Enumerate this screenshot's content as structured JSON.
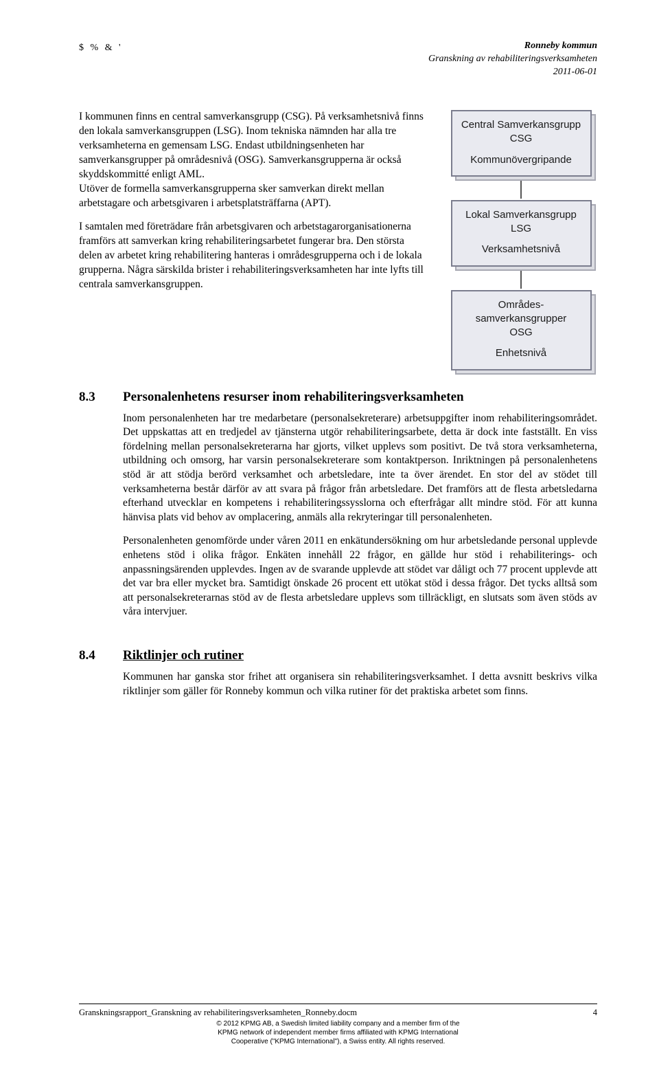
{
  "cornerMark": "$ % & '",
  "header": {
    "org": "Ronneby kommun",
    "subtitle": "Granskning av rehabiliteringsverksamheten",
    "date": "2011-06-01"
  },
  "intro": {
    "p1": "I kommunen finns en central samverkansgrupp (CSG). På verksamhetsnivå finns den lokala samverkansgruppen (LSG). Inom tekniska nämnden har alla tre verksamheterna en gemensam LSG. Endast utbildningsenheten har samverkansgrupper på områdesnivå (OSG). Samverkansgrupperna är också skyddskommitté enligt AML.",
    "p2": "Utöver de formella samverkansgrupperna sker samverkan direkt mellan arbetstagare och arbetsgivaren i arbetsplatsträffarna (APT).",
    "p3": "I samtalen med företrädare från arbetsgivaren och arbetstagarorganisationerna framförs att samverkan kring rehabiliteringsarbetet fungerar bra. Den största delen av arbetet kring rehabilitering hanteras i områdesgrupperna och i de lokala grupperna. Några särskilda brister i rehabiliteringsverksamheten har inte lyfts till centrala samverkansgruppen."
  },
  "diagram": {
    "boxes": [
      {
        "title": "Central Samverkansgrupp",
        "abbr": "CSG",
        "level": "Kommunövergripande"
      },
      {
        "title": "Lokal Samverkansgrupp",
        "abbr": "LSG",
        "level": "Verksamhetsnivå"
      },
      {
        "title_a": "Områdes-",
        "title_b": "samverkansgrupper",
        "abbr": "OSG",
        "level": "Enhetsnivå"
      }
    ],
    "colors": {
      "front_bg": "#e9eaf0",
      "front_border": "#7b7d8e",
      "shadow_bg": "#dcdde3",
      "shadow_border": "#a8a9b3"
    }
  },
  "sec83": {
    "num": "8.3",
    "title": "Personalenhetens resurser inom rehabiliteringsverksamheten",
    "p1": "Inom personalenheten har tre medarbetare (personalsekreterare) arbetsuppgifter inom rehabiliteringsområdet. Det uppskattas att en tredjedel av tjänsterna utgör rehabiliteringsarbete, detta är dock inte fastställt. En viss fördelning mellan personalsekreterarna har gjorts, vilket upplevs som positivt. De två stora verksamheterna, utbildning och omsorg, har varsin personalsekreterare som kontaktperson. Inriktningen på personalenhetens stöd är att stödja berörd verksamhet och arbetsledare, inte ta över ärendet. En stor del av stödet till verksamheterna består därför av att svara på frågor från arbetsledare. Det framförs att de flesta arbetsledarna efterhand utvecklar en kompetens i rehabiliteringssysslorna och efterfrågar allt mindre stöd. För att kunna hänvisa plats vid behov av omplacering, anmäls alla rekryteringar till personalenheten.",
    "p2": "Personalenheten genomförde under våren 2011 en enkätundersökning om hur arbetsledande personal upplevde enhetens stöd i olika frågor. Enkäten innehåll 22 frågor, en gällde hur stöd i rehabiliterings- och anpassningsärenden upplevdes. Ingen av de svarande upplevde att stödet var dåligt och 77 procent upplevde att det var bra eller mycket bra. Samtidigt önskade 26 procent ett utökat stöd i dessa frågor. Det tycks alltså som att personalsekreterarnas stöd av de flesta arbetsledare upplevs som tillräckligt, en slutsats som även stöds av våra intervjuer."
  },
  "sec84": {
    "num": "8.4",
    "title": "Riktlinjer och rutiner",
    "p1": "Kommunen har ganska stor frihet att organisera sin rehabiliteringsverksamhet. I detta avsnitt beskrivs vilka riktlinjer som gäller för Ronneby kommun och vilka rutiner för det praktiska arbetet som finns."
  },
  "footer": {
    "docname": "Granskningsrapport_Granskning av rehabiliteringsverksamheten_Ronneby.docm",
    "pagenum": "4",
    "l1": "© 2012 KPMG AB, a Swedish limited liability company and a member firm of the",
    "l2": "KPMG network of independent member firms affiliated with KPMG International",
    "l3": "Cooperative (\"KPMG International\"), a Swiss entity. All rights reserved."
  }
}
